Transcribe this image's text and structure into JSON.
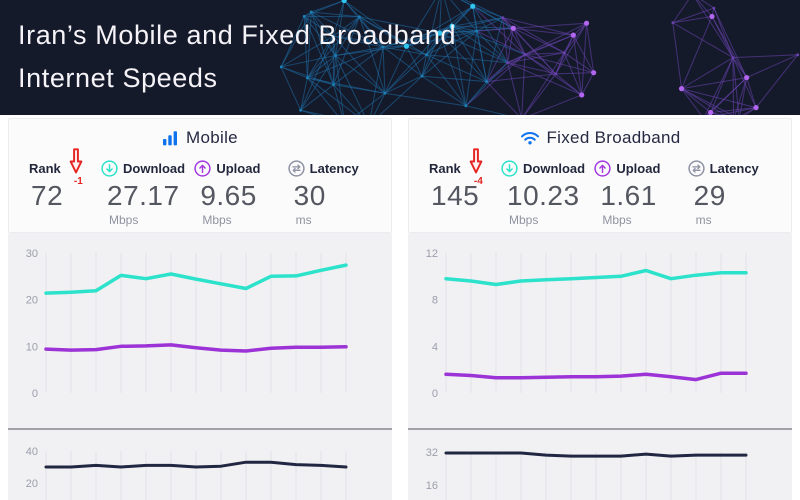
{
  "page": {
    "title_line1": "Iran’s Mobile and Fixed Broadband",
    "title_line2": "Internet Speeds"
  },
  "colors": {
    "header_bg": "#151a2b",
    "accent_blue": "#0e72ed",
    "download_cyan": "#2de2cb",
    "upload_purple": "#9c33d6",
    "latency_navy": "#212743",
    "rank_red": "#e52521",
    "chart_bg": "#f1f0f3",
    "gridline": "#e3e2e7",
    "tick_text": "#9b9eab"
  },
  "icons": {
    "mobile": "signal-bars-icon",
    "fixed": "wifi-icon",
    "download": "circle-arrow-down-icon",
    "upload": "circle-arrow-up-icon",
    "latency": "ping-arrows-icon",
    "rank_change": "red-down-block-arrow-icon"
  },
  "panels": [
    {
      "title": "Mobile",
      "stats": [
        {
          "label": "Rank",
          "value": "72",
          "change": "-1",
          "unit": ""
        },
        {
          "label": "Download",
          "value": "27.17",
          "unit": "Mbps"
        },
        {
          "label": "Upload",
          "value": "9.65",
          "unit": "Mbps"
        },
        {
          "label": "Latency",
          "value": "30",
          "unit": "ms"
        }
      ]
    },
    {
      "title": "Fixed Broadband",
      "stats": [
        {
          "label": "Rank",
          "value": "145",
          "change": "-4",
          "unit": ""
        },
        {
          "label": "Download",
          "value": "10.23",
          "unit": "Mbps"
        },
        {
          "label": "Upload",
          "value": "1.61",
          "unit": "Mbps"
        },
        {
          "label": "Latency",
          "value": "29",
          "unit": "ms"
        }
      ]
    }
  ],
  "chart_data": [
    {
      "id": "mobile-speed",
      "type": "line",
      "title": "Mobile speeds over time",
      "xlabel": "",
      "ylabel": "Mbps",
      "ylim": [
        0,
        30
      ],
      "yticks": [
        30,
        20,
        10,
        0
      ],
      "grid": "vertical",
      "legend": "none",
      "x_points": 13,
      "series": [
        {
          "name": "Download (Mbps)",
          "color": "#2de2cb",
          "values": [
            21.4,
            21.6,
            21.9,
            25.2,
            24.5,
            25.5,
            24.4,
            23.4,
            22.4,
            25.0,
            25.1,
            26.3,
            27.4
          ]
        },
        {
          "name": "Upload (Mbps)",
          "color": "#9c33d6",
          "values": [
            9.4,
            9.2,
            9.3,
            10.0,
            10.1,
            10.3,
            9.7,
            9.2,
            9.0,
            9.6,
            9.8,
            9.8,
            9.9
          ]
        }
      ]
    },
    {
      "id": "mobile-latency",
      "type": "line",
      "title": "Mobile latency over time",
      "xlabel": "",
      "ylabel": "ms",
      "ylim": [
        0,
        40
      ],
      "yticks": [
        40,
        20
      ],
      "grid": "vertical",
      "legend": "none",
      "x_points": 13,
      "series": [
        {
          "name": "Latency (ms)",
          "color": "#212743",
          "values": [
            30,
            30,
            31,
            30,
            31,
            31,
            30,
            30.5,
            33,
            33,
            31.5,
            31,
            30
          ]
        }
      ]
    },
    {
      "id": "fixed-speed",
      "type": "line",
      "title": "Fixed broadband speeds over time",
      "xlabel": "",
      "ylabel": "Mbps",
      "ylim": [
        0,
        12
      ],
      "yticks": [
        12,
        8,
        4,
        0
      ],
      "grid": "vertical",
      "legend": "none",
      "x_points": 13,
      "series": [
        {
          "name": "Download (Mbps)",
          "color": "#2de2cb",
          "values": [
            9.8,
            9.6,
            9.3,
            9.6,
            9.7,
            9.8,
            9.9,
            10.0,
            10.5,
            9.8,
            10.1,
            10.3,
            10.3
          ]
        },
        {
          "name": "Upload (Mbps)",
          "color": "#9c33d6",
          "values": [
            1.6,
            1.5,
            1.3,
            1.3,
            1.35,
            1.4,
            1.4,
            1.45,
            1.6,
            1.4,
            1.15,
            1.7,
            1.7
          ]
        }
      ]
    },
    {
      "id": "fixed-latency",
      "type": "line",
      "title": "Fixed broadband latency over time",
      "xlabel": "",
      "ylabel": "ms",
      "ylim": [
        0,
        32
      ],
      "yticks": [
        32,
        16
      ],
      "grid": "vertical",
      "legend": "none",
      "x_points": 13,
      "series": [
        {
          "name": "Latency (ms)",
          "color": "#212743",
          "values": [
            31.5,
            31.5,
            31.5,
            31.5,
            30.5,
            30,
            30,
            30,
            31,
            30,
            30.5,
            30.5,
            30.5
          ]
        }
      ]
    }
  ]
}
